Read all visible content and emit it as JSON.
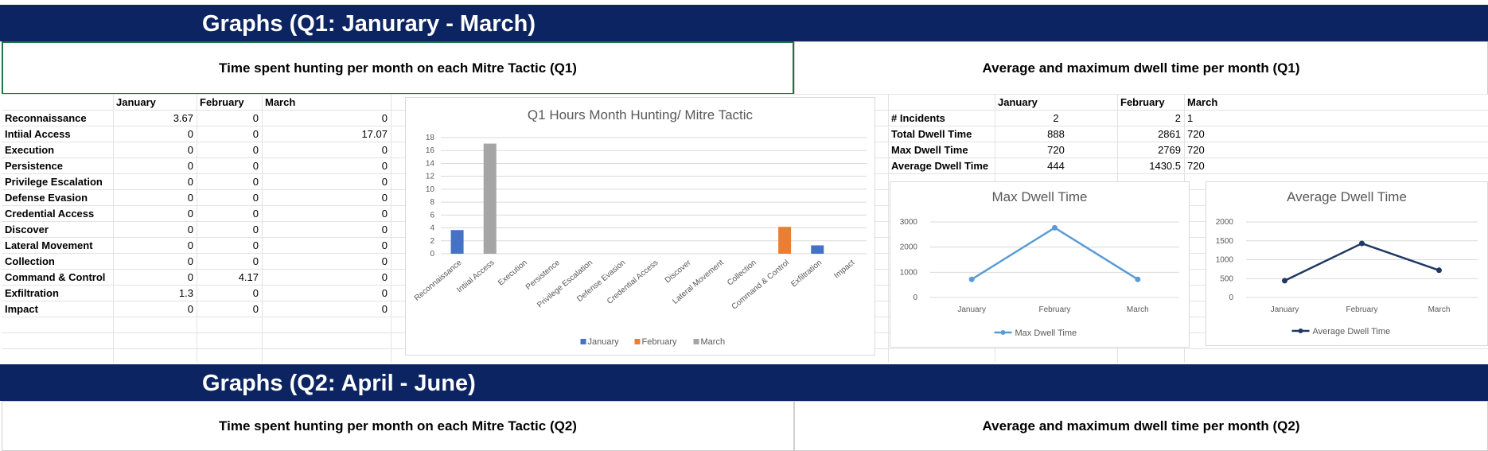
{
  "q1": {
    "band_title": "Graphs (Q1: Janurary - March)",
    "left_heading": "Time spent hunting per month on each Mitre Tactic (Q1)",
    "right_heading": "Average and maximum dwell time per month (Q1)"
  },
  "q2": {
    "band_title": "Graphs (Q2: April - June)",
    "left_heading": "Time spent hunting per month on each Mitre Tactic (Q2)",
    "right_heading": "Average and maximum dwell time per month (Q2)"
  },
  "hunting_table": {
    "columns": [
      "January",
      "February",
      "March"
    ],
    "rows": [
      {
        "tactic": "Reconnaissance",
        "jan": "3.67",
        "feb": "0",
        "mar": "0"
      },
      {
        "tactic": "Intiial Access",
        "jan": "0",
        "feb": "0",
        "mar": "17.07"
      },
      {
        "tactic": "Execution",
        "jan": "0",
        "feb": "0",
        "mar": "0"
      },
      {
        "tactic": "Persistence",
        "jan": "0",
        "feb": "0",
        "mar": "0"
      },
      {
        "tactic": "Privilege Escalation",
        "jan": "0",
        "feb": "0",
        "mar": "0"
      },
      {
        "tactic": "Defense Evasion",
        "jan": "0",
        "feb": "0",
        "mar": "0"
      },
      {
        "tactic": "Credential Access",
        "jan": "0",
        "feb": "0",
        "mar": "0"
      },
      {
        "tactic": "Discover",
        "jan": "0",
        "feb": "0",
        "mar": "0"
      },
      {
        "tactic": "Lateral Movement",
        "jan": "0",
        "feb": "0",
        "mar": "0"
      },
      {
        "tactic": "Collection",
        "jan": "0",
        "feb": "0",
        "mar": "0"
      },
      {
        "tactic": "Command & Control",
        "jan": "0",
        "feb": "4.17",
        "mar": "0"
      },
      {
        "tactic": "Exfiltration",
        "jan": "1.3",
        "feb": "0",
        "mar": "0"
      },
      {
        "tactic": "Impact",
        "jan": "0",
        "feb": "0",
        "mar": "0"
      }
    ]
  },
  "dwell_table": {
    "columns": [
      "January",
      "February",
      "March"
    ],
    "rows": [
      {
        "label": "# Incidents",
        "jan": "2",
        "feb": "2",
        "mar": "1"
      },
      {
        "label": "Total Dwell Time",
        "jan": "888",
        "feb": "2861",
        "mar": "720"
      },
      {
        "label": "Max Dwell Time",
        "jan": "720",
        "feb": "2769",
        "mar": "720"
      },
      {
        "label": "Average Dwell Time",
        "jan": "444",
        "feb": "1430.5",
        "mar": "720"
      }
    ]
  },
  "colors": {
    "band": "#0c2461",
    "jan": "#4472c4",
    "feb": "#ed7d31",
    "mar": "#a5a5a5",
    "max_line": "#5b9bd5",
    "avg_line": "#1f3864"
  },
  "chart_data": [
    {
      "type": "bar",
      "title": "Q1 Hours Month Hunting/ Mitre Tactic",
      "categories": [
        "Reconnaissance",
        "Intiial Access",
        "Execution",
        "Persistence",
        "Privilege Escalation",
        "Defense Evasion",
        "Credential Access",
        "Discover",
        "Lateral Movement",
        "Collection",
        "Command & Control",
        "Exfiltration",
        "Impact"
      ],
      "series": [
        {
          "name": "January",
          "values": [
            3.67,
            0,
            0,
            0,
            0,
            0,
            0,
            0,
            0,
            0,
            0,
            1.3,
            0
          ]
        },
        {
          "name": "February",
          "values": [
            0,
            0,
            0,
            0,
            0,
            0,
            0,
            0,
            0,
            0,
            4.17,
            0,
            0
          ]
        },
        {
          "name": "March",
          "values": [
            0,
            17.07,
            0,
            0,
            0,
            0,
            0,
            0,
            0,
            0,
            0,
            0,
            0
          ]
        }
      ],
      "ylim": [
        0,
        18
      ],
      "yticks": [
        0,
        2,
        4,
        6,
        8,
        10,
        12,
        14,
        16,
        18
      ],
      "legend": "bottom",
      "grid": true
    },
    {
      "type": "line",
      "title": "Max Dwell Time",
      "categories": [
        "January",
        "February",
        "March"
      ],
      "series": [
        {
          "name": "Max Dwell Time",
          "values": [
            720,
            2769,
            720
          ]
        }
      ],
      "ylim": [
        0,
        3000
      ],
      "yticks": [
        0,
        1000,
        2000,
        3000
      ],
      "legend": "bottom",
      "grid": true
    },
    {
      "type": "line",
      "title": "Average Dwell Time",
      "categories": [
        "January",
        "February",
        "March"
      ],
      "series": [
        {
          "name": "Average Dwell Time",
          "values": [
            444,
            1430.5,
            720
          ]
        }
      ],
      "ylim": [
        0,
        2000
      ],
      "yticks": [
        0,
        500,
        1000,
        1500,
        2000
      ],
      "legend": "bottom",
      "grid": true
    }
  ]
}
